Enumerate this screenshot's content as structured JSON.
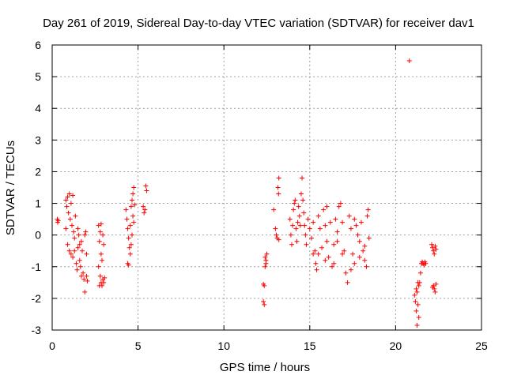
{
  "chart_data": {
    "type": "scatter",
    "title": "Day 261 of 2019, Sidereal Day-to-day VTEC variation (SDTVAR) for receiver dav1",
    "xlabel": "GPS time / hours",
    "ylabel": "SDTVAR / TECUs",
    "xlim": [
      0,
      25
    ],
    "ylim": [
      -3,
      6
    ],
    "xticks": [
      "0",
      "5",
      "10",
      "15",
      "20",
      "25"
    ],
    "yticks": [
      "-3",
      "-2",
      "-1",
      "0",
      "1",
      "2",
      "3",
      "4",
      "5",
      "6"
    ],
    "grid": true,
    "marker": "+",
    "color": "#ff0000",
    "series": [
      {
        "name": "dav1",
        "points": [
          [
            0.3,
            0.5
          ],
          [
            0.32,
            0.4
          ],
          [
            0.35,
            0.45
          ],
          [
            0.8,
            1.1
          ],
          [
            0.85,
            0.9
          ],
          [
            0.9,
            1.2
          ],
          [
            0.95,
            0.7
          ],
          [
            1.0,
            1.3
          ],
          [
            1.05,
            0.5
          ],
          [
            1.1,
            1.0
          ],
          [
            1.15,
            0.3
          ],
          [
            1.2,
            1.25
          ],
          [
            1.25,
            0.1
          ],
          [
            1.3,
            -0.1
          ],
          [
            1.35,
            0.6
          ],
          [
            0.8,
            0.2
          ],
          [
            0.9,
            -0.3
          ],
          [
            1.0,
            -0.5
          ],
          [
            1.1,
            -0.6
          ],
          [
            1.2,
            -0.7
          ],
          [
            1.3,
            -0.5
          ],
          [
            1.4,
            -0.9
          ],
          [
            1.45,
            -1.1
          ],
          [
            1.5,
            -0.4
          ],
          [
            1.55,
            0.0
          ],
          [
            1.6,
            -0.8
          ],
          [
            1.65,
            -1.0
          ],
          [
            1.7,
            -0.2
          ],
          [
            1.75,
            -0.5
          ],
          [
            1.8,
            -1.2
          ],
          [
            1.85,
            -1.4
          ],
          [
            1.9,
            0.0
          ],
          [
            1.95,
            0.1
          ],
          [
            2.0,
            -0.6
          ],
          [
            1.9,
            -1.8
          ],
          [
            2.0,
            -1.3
          ],
          [
            2.05,
            -1.45
          ],
          [
            1.7,
            -1.3
          ],
          [
            1.6,
            -0.3
          ],
          [
            1.5,
            0.2
          ],
          [
            2.7,
            0.3
          ],
          [
            2.75,
            -0.2
          ],
          [
            2.8,
            0.1
          ],
          [
            2.85,
            -0.6
          ],
          [
            2.9,
            -0.8
          ],
          [
            2.95,
            0.0
          ],
          [
            3.0,
            -0.3
          ],
          [
            2.8,
            -1.3
          ],
          [
            2.85,
            -1.5
          ],
          [
            2.9,
            -1.6
          ],
          [
            2.95,
            -1.4
          ],
          [
            3.0,
            -1.5
          ],
          [
            3.05,
            -1.35
          ],
          [
            2.75,
            -1.6
          ],
          [
            2.85,
            0.35
          ],
          [
            2.7,
            -1.0
          ],
          [
            4.3,
            0.8
          ],
          [
            4.35,
            0.5
          ],
          [
            4.4,
            0.2
          ],
          [
            4.45,
            -0.1
          ],
          [
            4.5,
            -0.4
          ],
          [
            4.55,
            -0.6
          ],
          [
            4.4,
            -0.9
          ],
          [
            4.45,
            -0.95
          ],
          [
            4.6,
            0.9
          ],
          [
            4.65,
            1.1
          ],
          [
            4.7,
            1.3
          ],
          [
            4.75,
            1.5
          ],
          [
            4.7,
            0.6
          ],
          [
            4.75,
            0.4
          ],
          [
            4.8,
            0.95
          ],
          [
            4.65,
            0.0
          ],
          [
            4.55,
            0.3
          ],
          [
            4.6,
            -0.3
          ],
          [
            5.3,
            0.9
          ],
          [
            5.35,
            0.7
          ],
          [
            5.4,
            0.8
          ],
          [
            5.45,
            1.55
          ],
          [
            5.5,
            1.4
          ],
          [
            12.3,
            -1.55
          ],
          [
            12.35,
            -1.6
          ],
          [
            12.3,
            -2.1
          ],
          [
            12.35,
            -2.2
          ],
          [
            12.4,
            -0.7
          ],
          [
            12.45,
            -0.8
          ],
          [
            12.5,
            -0.6
          ],
          [
            12.45,
            -0.9
          ],
          [
            12.4,
            -1.0
          ],
          [
            12.9,
            0.8
          ],
          [
            13.0,
            0.2
          ],
          [
            13.05,
            0.0
          ],
          [
            13.1,
            -0.1
          ],
          [
            13.2,
            1.8
          ],
          [
            13.15,
            1.5
          ],
          [
            13.18,
            1.3
          ],
          [
            13.2,
            -0.15
          ],
          [
            13.85,
            0.5
          ],
          [
            13.9,
            0.0
          ],
          [
            13.95,
            -0.3
          ],
          [
            14.0,
            0.3
          ],
          [
            14.05,
            0.8
          ],
          [
            14.1,
            1.0
          ],
          [
            14.15,
            1.1
          ],
          [
            14.2,
            0.2
          ],
          [
            14.25,
            -0.2
          ],
          [
            14.3,
            0.4
          ],
          [
            14.35,
            0.9
          ],
          [
            14.4,
            0.6
          ],
          [
            14.45,
            0.3
          ],
          [
            14.5,
            1.3
          ],
          [
            14.55,
            1.8
          ],
          [
            14.6,
            1.1
          ],
          [
            14.65,
            0.7
          ],
          [
            14.7,
            0.3
          ],
          [
            14.75,
            0.0
          ],
          [
            14.8,
            -0.3
          ],
          [
            14.9,
            0.5
          ],
          [
            15.0,
            0.2
          ],
          [
            15.1,
            -0.1
          ],
          [
            15.2,
            0.4
          ],
          [
            15.3,
            -0.5
          ],
          [
            15.35,
            -0.9
          ],
          [
            15.4,
            -1.1
          ],
          [
            15.5,
            0.6
          ],
          [
            15.6,
            0.2
          ],
          [
            15.7,
            -0.4
          ],
          [
            15.8,
            0.8
          ],
          [
            15.9,
            0.3
          ],
          [
            16.0,
            -0.2
          ],
          [
            16.1,
            -0.7
          ],
          [
            16.2,
            0.4
          ],
          [
            16.3,
            -1.0
          ],
          [
            16.4,
            -0.3
          ],
          [
            16.5,
            0.5
          ],
          [
            16.6,
            0.1
          ],
          [
            16.7,
            0.9
          ],
          [
            16.8,
            1.0
          ],
          [
            16.9,
            0.4
          ],
          [
            17.0,
            -0.5
          ],
          [
            17.1,
            -1.2
          ],
          [
            17.2,
            -1.5
          ],
          [
            17.3,
            0.6
          ],
          [
            17.4,
            0.2
          ],
          [
            17.5,
            -0.6
          ],
          [
            17.6,
            -0.9
          ],
          [
            17.7,
            0.3
          ],
          [
            17.8,
            0.0
          ],
          [
            17.9,
            -0.2
          ],
          [
            18.0,
            0.4
          ],
          [
            18.1,
            -0.5
          ],
          [
            18.2,
            -0.8
          ],
          [
            18.3,
            -1.0
          ],
          [
            18.35,
            0.6
          ],
          [
            18.4,
            0.8
          ],
          [
            18.45,
            -0.1
          ],
          [
            18.2,
            -0.35
          ],
          [
            15.5,
            -0.6
          ],
          [
            15.9,
            -0.8
          ],
          [
            16.4,
            -0.9
          ],
          [
            16.9,
            -0.6
          ],
          [
            17.4,
            -1.1
          ],
          [
            17.9,
            -0.7
          ],
          [
            15.2,
            -0.6
          ],
          [
            16.0,
            0.9
          ],
          [
            16.6,
            -0.2
          ],
          [
            17.6,
            0.5
          ],
          [
            20.8,
            5.5
          ],
          [
            21.1,
            -1.9
          ],
          [
            21.15,
            -2.1
          ],
          [
            21.2,
            -2.4
          ],
          [
            21.25,
            -2.85
          ],
          [
            21.3,
            -1.5
          ],
          [
            21.35,
            -1.6
          ],
          [
            21.2,
            -1.7
          ],
          [
            21.25,
            -1.8
          ],
          [
            21.3,
            -2.2
          ],
          [
            21.35,
            -2.6
          ],
          [
            21.4,
            -1.5
          ],
          [
            21.45,
            -1.2
          ],
          [
            21.5,
            -0.9
          ],
          [
            21.55,
            -0.85
          ],
          [
            21.6,
            -0.9
          ],
          [
            21.65,
            -0.95
          ],
          [
            21.7,
            -0.85
          ],
          [
            21.75,
            -0.9
          ],
          [
            22.1,
            -0.3
          ],
          [
            22.15,
            -0.4
          ],
          [
            22.2,
            -0.5
          ],
          [
            22.25,
            -0.6
          ],
          [
            22.3,
            -0.35
          ],
          [
            22.35,
            -0.45
          ],
          [
            22.2,
            -1.6
          ],
          [
            22.25,
            -1.7
          ],
          [
            22.3,
            -1.8
          ],
          [
            22.35,
            -1.55
          ],
          [
            22.15,
            -1.65
          ]
        ]
      }
    ]
  }
}
